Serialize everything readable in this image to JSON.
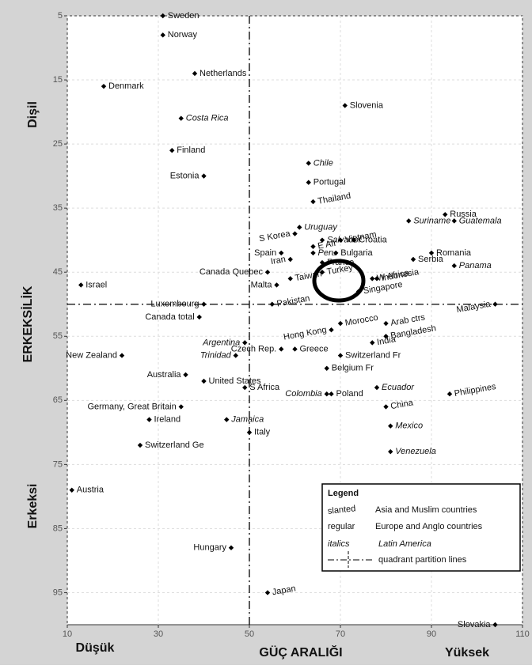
{
  "chart_data": {
    "type": "scatter",
    "x_label": "GÜÇ ARALIĞI",
    "x_low_label": "Düşük",
    "x_high_label": "Yüksek",
    "y_label": "ERKEKSİLİK",
    "y_top_label": "Dişil",
    "y_bottom_label": "Erkeksi",
    "xlim": [
      10,
      110
    ],
    "xticks": [
      10,
      30,
      50,
      70,
      90,
      110
    ],
    "ylim": [
      5,
      100
    ],
    "yticks": [
      5,
      15,
      25,
      35,
      45,
      55,
      65,
      75,
      85,
      95
    ],
    "y_inverted": true,
    "grid": true,
    "color": "#000000",
    "quadrant_lines": {
      "x": 50,
      "y": 50
    },
    "labels": [
      "Sweden",
      "Norway",
      "Netherlands",
      "Denmark",
      "Slovenia",
      "Costa Rica",
      "Finland",
      "Estonia",
      "Chile",
      "Portugal",
      "Thailand",
      "Russia",
      "Guatemala",
      "Uruguay",
      "Suriname",
      "S Korea",
      "Salvador",
      "Vietnam",
      "Croatia",
      "E Afr",
      "Bulgaria",
      "Peru",
      "Spain",
      "Romania",
      "Iran",
      "Serbia",
      "France",
      "Panama",
      "W Africa",
      "Canada Quebec",
      "Taiwan",
      "Turkey",
      "Indonesia",
      "Israel",
      "Malta",
      "Singapore",
      "Luxembourg",
      "Pakistan",
      "Malaysia",
      "Canada total",
      "Morocco",
      "Arab ctrs",
      "Hong Kong",
      "Bangladesh",
      "India",
      "Argentina",
      "Czech Rep.",
      "Greece",
      "Switzerland Fr",
      "New Zealand",
      "Trinidad",
      "Belgium Fr",
      "Australia",
      "United States",
      "S Africa",
      "Ecuador",
      "Poland",
      "Colombia",
      "Philippines",
      "Germany, Great Britain",
      "China",
      "Ireland",
      "Jamaica",
      "Mexico",
      "Italy",
      "Switzerland Ge",
      "Venezuela",
      "Austria",
      "Hungary",
      "Japan",
      "Slovakia"
    ],
    "x": [
      31,
      31,
      38,
      18,
      71,
      35,
      33,
      40,
      63,
      63,
      64,
      93,
      95,
      61,
      85,
      60,
      66,
      70,
      73,
      64,
      69,
      64,
      57,
      90,
      59,
      86,
      66,
      95,
      77,
      54,
      59,
      66,
      78,
      13,
      56,
      74,
      40,
      55,
      104,
      39,
      70,
      80,
      68,
      80,
      77,
      49,
      57,
      60,
      70,
      22,
      47,
      67,
      36,
      40,
      49,
      78,
      68,
      67,
      94,
      35,
      80,
      28,
      45,
      81,
      50,
      26,
      81,
      11,
      46,
      54,
      104
    ],
    "y": [
      5,
      8,
      14,
      16,
      19,
      21,
      26,
      30,
      28,
      31,
      34,
      36,
      37,
      38,
      37,
      39,
      40,
      40,
      40,
      41,
      42,
      42,
      42,
      42,
      43,
      43,
      43.5,
      44,
      46,
      45,
      46,
      45,
      46,
      47,
      47,
      48,
      50,
      50,
      50,
      52,
      53,
      53,
      54,
      55,
      56,
      56,
      57,
      57,
      58,
      58,
      58,
      60,
      61,
      62,
      63,
      63,
      64,
      64,
      64,
      66,
      66,
      68,
      68,
      69,
      70,
      72,
      73,
      79,
      88,
      95,
      100
    ],
    "styles": [
      "regular",
      "regular",
      "regular",
      "regular",
      "regular",
      "italic",
      "regular",
      "regular",
      "italic",
      "regular",
      "slanted",
      "regular",
      "italic",
      "italic",
      "italic",
      "slanted",
      "italic",
      "slanted",
      "regular",
      "slanted",
      "regular",
      "italic",
      "regular",
      "regular",
      "slanted",
      "regular",
      "regular",
      "italic",
      "slanted",
      "regular",
      "slanted",
      "slanted",
      "slanted",
      "regular",
      "regular",
      "slanted",
      "regular",
      "slanted",
      "slanted",
      "regular",
      "slanted",
      "slanted",
      "slanted",
      "slanted",
      "slanted",
      "italic",
      "regular",
      "regular",
      "regular",
      "regular",
      "italic",
      "regular",
      "regular",
      "regular",
      "regular",
      "italic",
      "regular",
      "italic",
      "slanted",
      "regular",
      "slanted",
      "regular",
      "italic",
      "italic",
      "regular",
      "regular",
      "italic",
      "regular",
      "regular",
      "slanted",
      "regular"
    ],
    "legend": {
      "title": "Legend",
      "entries": [
        {
          "key": "slanted",
          "text": "Asia and Muslim countries"
        },
        {
          "key": "regular",
          "text": "Europe and Anglo countries"
        },
        {
          "key": "italics",
          "text": "Latin America"
        },
        {
          "text": "quadrant partition lines"
        }
      ]
    }
  }
}
